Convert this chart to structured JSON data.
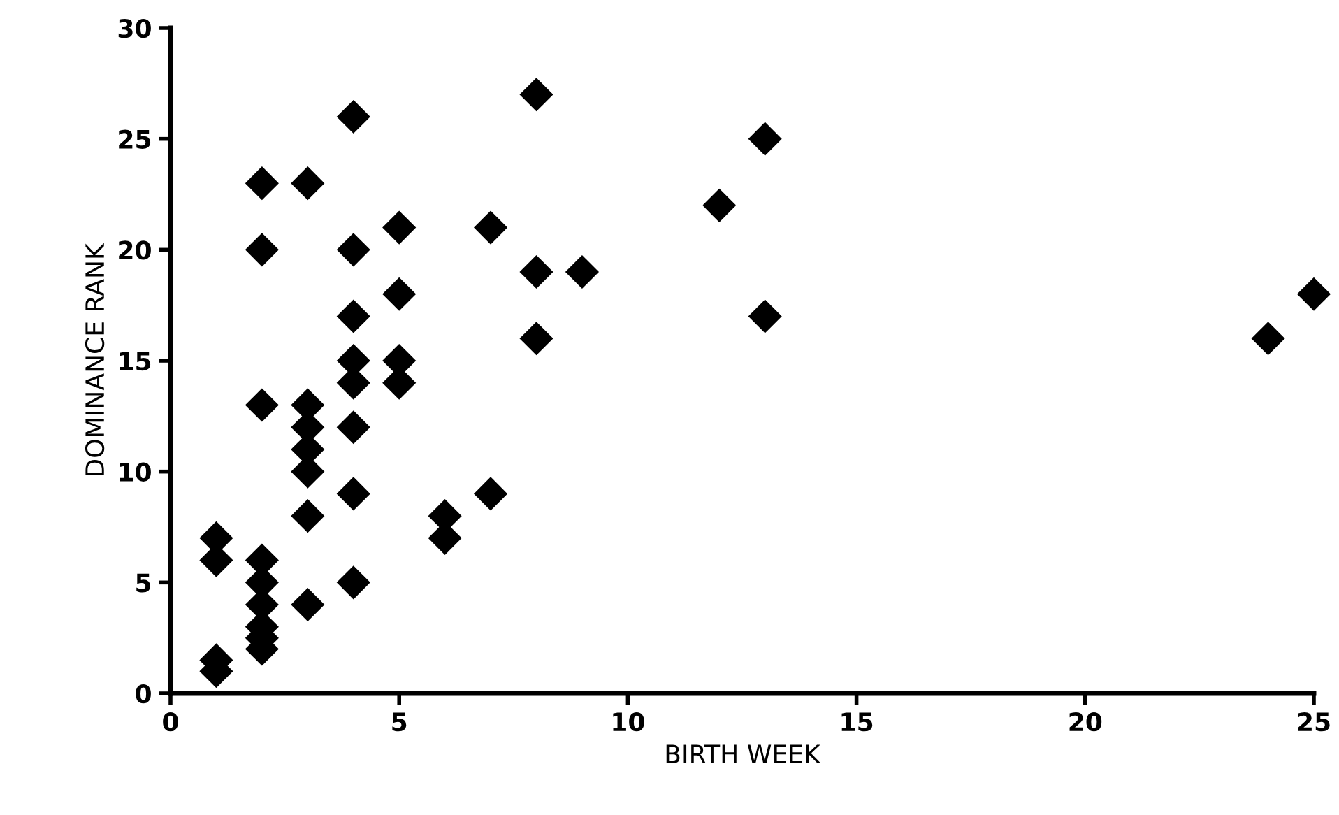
{
  "chart_data": {
    "type": "scatter",
    "xlabel": "BIRTH WEEK",
    "ylabel": "DOMINANCE RANK",
    "marker": "diamond",
    "grid": false,
    "legend": false,
    "x": [
      1,
      1,
      1,
      1,
      2,
      2,
      2,
      2,
      2,
      2,
      2,
      2,
      2,
      3,
      3,
      3,
      3,
      3,
      3,
      3,
      4,
      4,
      4,
      4,
      4,
      4,
      4,
      4,
      5,
      5,
      5,
      5,
      6,
      6,
      7,
      7,
      8,
      8,
      8,
      9,
      12,
      13,
      13,
      24,
      25
    ],
    "series": [
      {
        "color": "#000000",
        "values": [
          7,
          6,
          1.5,
          1,
          23,
          20,
          13,
          6,
          5,
          4,
          3,
          2.5,
          2,
          23,
          13,
          12,
          11,
          10,
          8,
          4,
          26,
          20,
          17,
          15,
          14,
          12,
          9,
          5,
          21,
          18,
          15,
          14,
          8,
          7,
          21,
          9,
          27,
          19,
          16,
          19,
          22,
          25,
          17,
          16,
          18
        ]
      }
    ],
    "xlim": [
      0,
      25
    ],
    "xticks": [
      0,
      5,
      10,
      15,
      20,
      25
    ],
    "ylim": [
      0,
      30
    ],
    "yticks": [
      0,
      5,
      10,
      15,
      20,
      25,
      30
    ]
  }
}
